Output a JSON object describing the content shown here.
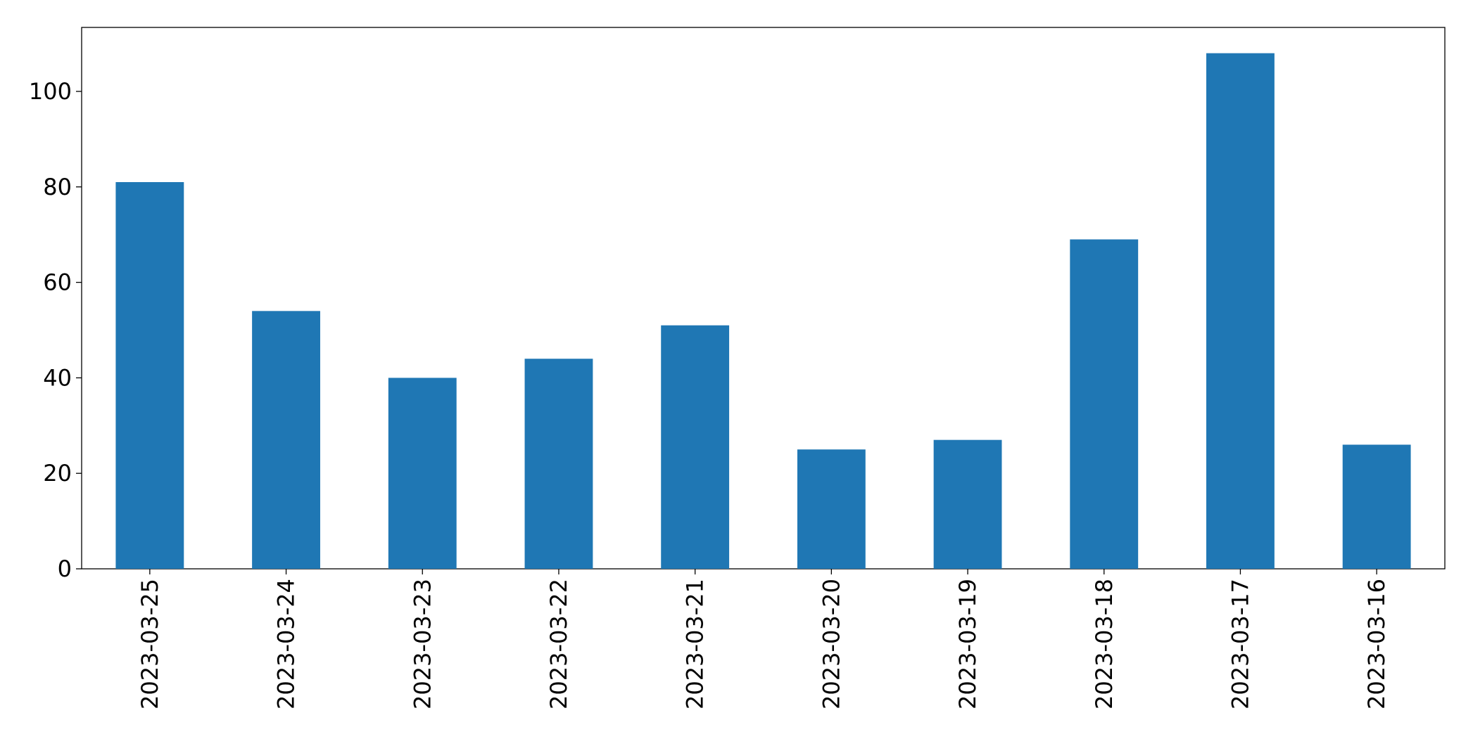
{
  "chart_data": {
    "type": "bar",
    "categories": [
      "2023-03-25",
      "2023-03-24",
      "2023-03-23",
      "2023-03-22",
      "2023-03-21",
      "2023-03-20",
      "2023-03-19",
      "2023-03-18",
      "2023-03-17",
      "2023-03-16"
    ],
    "values": [
      81,
      54,
      40,
      44,
      51,
      25,
      27,
      69,
      108,
      26
    ],
    "color": "#1f77b4",
    "ylim": [
      0,
      113.4
    ],
    "yticks": [
      0,
      20,
      40,
      60,
      80,
      100
    ],
    "grid": false
  }
}
